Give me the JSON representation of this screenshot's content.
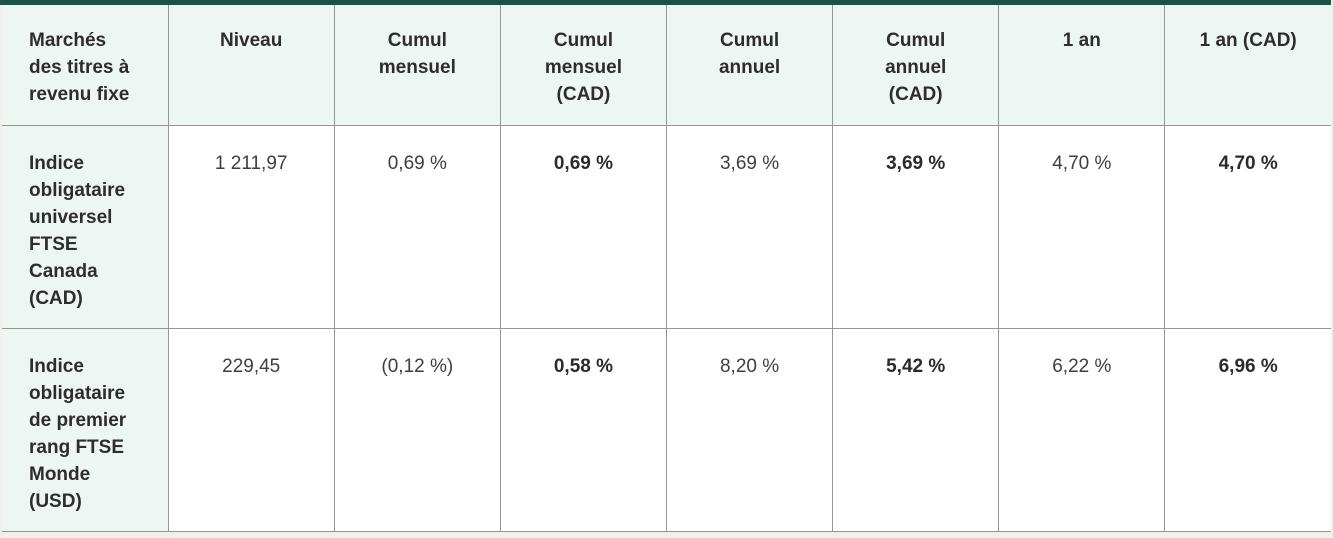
{
  "theme": {
    "accent_bar_color": "#1a534e",
    "header_bg": "#eef6f3",
    "row_label_bg": "#eef6f3",
    "border_color": "#97978f",
    "page_bg": "#f1f0eb",
    "bold_text_color": "#2b2b2b",
    "regular_text_color": "#3e3e3e"
  },
  "table": {
    "columns": [
      "Marchés\ndes titres à\nrevenu fixe",
      "Niveau",
      "Cumul\nmensuel",
      "Cumul\nmensuel\n(CAD)",
      "Cumul\nannuel",
      "Cumul\nannuel\n(CAD)",
      "1 an",
      "1 an (CAD)"
    ],
    "rows": [
      {
        "label": "Indice\nobligataire\nuniversel\nFTSE\nCanada\n(CAD)",
        "values": [
          "1 211,97",
          "0,69 %",
          "0,69 %",
          "3,69 %",
          "3,69 %",
          "4,70 %",
          "4,70 %"
        ]
      },
      {
        "label": "Indice\nobligataire\nde premier\nrang FTSE\nMonde\n(USD)",
        "values": [
          "229,45",
          "(0,12 %)",
          "0,58 %",
          "8,20 %",
          "5,42 %",
          "6,22 %",
          "6,96 %"
        ]
      }
    ]
  },
  "chart_data": {
    "type": "table",
    "title": "Marchés des titres à revenu fixe",
    "columns": [
      "Marchés des titres à revenu fixe",
      "Niveau",
      "Cumul mensuel",
      "Cumul mensuel (CAD)",
      "Cumul annuel",
      "Cumul annuel (CAD)",
      "1 an",
      "1 an (CAD)"
    ],
    "rows": [
      [
        "Indice obligataire universel FTSE Canada (CAD)",
        "1 211,97",
        "0,69 %",
        "0,69 %",
        "3,69 %",
        "3,69 %",
        "4,70 %",
        "4,70 %"
      ],
      [
        "Indice obligataire de premier rang FTSE Monde (USD)",
        "229,45",
        "(0,12 %)",
        "0,58 %",
        "8,20 %",
        "5,42 %",
        "6,22 %",
        "6,96 %"
      ]
    ],
    "bold_value_columns": [
      "Cumul mensuel (CAD)",
      "Cumul annuel (CAD)",
      "1 an (CAD)"
    ]
  }
}
